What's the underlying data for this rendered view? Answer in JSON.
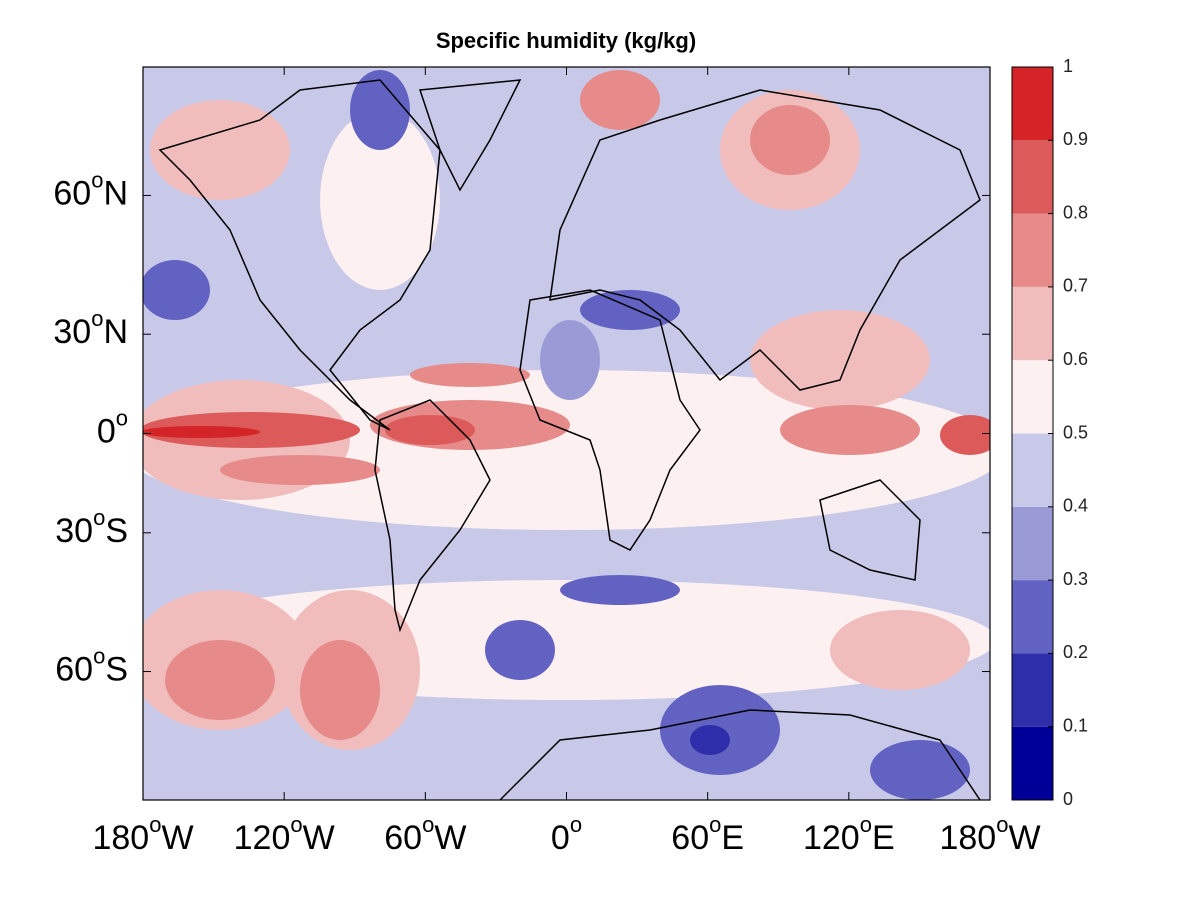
{
  "chart_data": {
    "type": "contour-map",
    "title": "Specific humidity (kg/kg)",
    "projection": "mercator",
    "xlim": [
      -180,
      180
    ],
    "ylim": [
      -75,
      75
    ],
    "xticks": [
      {
        "value": -180,
        "label": [
          "180",
          "o",
          "W"
        ]
      },
      {
        "value": -120,
        "label": [
          "120",
          "o",
          "W"
        ]
      },
      {
        "value": -60,
        "label": [
          "60",
          "o",
          "W"
        ]
      },
      {
        "value": 0,
        "label": [
          "0",
          "o"
        ]
      },
      {
        "value": 60,
        "label": [
          "60",
          "o",
          "E"
        ]
      },
      {
        "value": 120,
        "label": [
          "120",
          "o",
          "E"
        ]
      },
      {
        "value": 180,
        "label": [
          "180",
          "o",
          "W"
        ]
      }
    ],
    "yticks": [
      {
        "value": 60,
        "label": [
          "60",
          "o",
          "N"
        ]
      },
      {
        "value": 30,
        "label": [
          "30",
          "o",
          "N"
        ]
      },
      {
        "value": 0,
        "label": [
          "0",
          "o"
        ]
      },
      {
        "value": -30,
        "label": [
          "30",
          "o",
          "S"
        ]
      },
      {
        "value": -60,
        "label": [
          "60",
          "o",
          "S"
        ]
      }
    ],
    "clim": [
      0,
      1
    ],
    "cticks": [
      0,
      0.1,
      0.2,
      0.3,
      0.4,
      0.5,
      0.6,
      0.7,
      0.8,
      0.9,
      1
    ],
    "colors": [
      "#000099",
      "#2e2eab",
      "#6262c2",
      "#9a9ad6",
      "#c8c8e8",
      "#fdf0f0",
      "#f0bcbc",
      "#e68a8a",
      "#dc5a5a",
      "#d42428"
    ]
  }
}
